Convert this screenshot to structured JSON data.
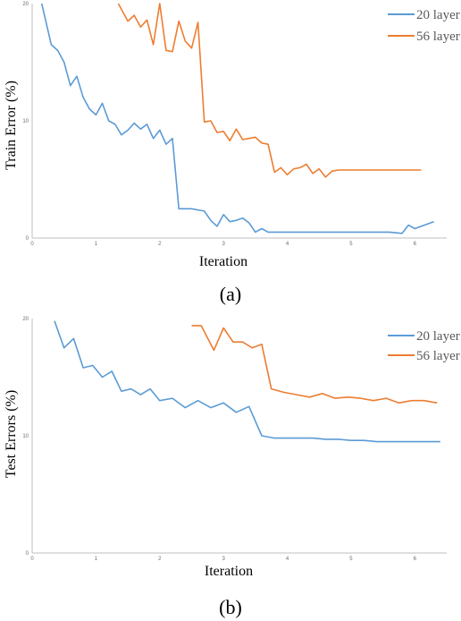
{
  "chart_data": [
    {
      "type": "line",
      "title": "",
      "caption": "(a)",
      "xlabel": "Iteration",
      "ylabel": "Train Error (%)",
      "xlim": [
        0,
        6.5
      ],
      "ylim": [
        0,
        20
      ],
      "x_ticks": [
        "0",
        "1",
        "2",
        "3",
        "4",
        "5",
        "6"
      ],
      "y_ticks": [
        "0",
        "10",
        "20"
      ],
      "legend_position": "top-right",
      "series": [
        {
          "name": "20 layer",
          "color": "#5b9bd5",
          "x": [
            0.15,
            0.3,
            0.4,
            0.5,
            0.6,
            0.7,
            0.8,
            0.9,
            1.0,
            1.1,
            1.2,
            1.3,
            1.4,
            1.5,
            1.6,
            1.7,
            1.8,
            1.9,
            2.0,
            2.1,
            2.2,
            2.3,
            2.4,
            2.5,
            2.6,
            2.7,
            2.8,
            2.9,
            3.0,
            3.1,
            3.2,
            3.3,
            3.4,
            3.5,
            3.6,
            3.7,
            3.8,
            3.9,
            4.0,
            4.1,
            4.2,
            4.3,
            4.4,
            4.5,
            4.6,
            4.7,
            4.8,
            4.9,
            5.0,
            5.2,
            5.4,
            5.6,
            5.8,
            5.9,
            6.0,
            6.1,
            6.3
          ],
          "values": [
            20,
            16.5,
            16.0,
            15.0,
            13.0,
            13.8,
            12.0,
            11.0,
            10.5,
            11.5,
            10.0,
            9.7,
            8.8,
            9.2,
            9.8,
            9.3,
            9.7,
            8.5,
            9.2,
            8.0,
            8.5,
            2.5,
            2.5,
            2.5,
            2.4,
            2.3,
            1.5,
            1.0,
            2.0,
            1.4,
            1.5,
            1.7,
            1.3,
            0.5,
            0.8,
            0.5,
            0.5,
            0.5,
            0.5,
            0.5,
            0.5,
            0.5,
            0.5,
            0.5,
            0.5,
            0.5,
            0.5,
            0.5,
            0.5,
            0.5,
            0.5,
            0.5,
            0.4,
            1.1,
            0.8,
            1.0,
            1.4
          ]
        },
        {
          "name": "56 layer",
          "color": "#ed7d31",
          "x": [
            1.35,
            1.5,
            1.6,
            1.7,
            1.8,
            1.9,
            2.0,
            2.1,
            2.2,
            2.3,
            2.4,
            2.5,
            2.6,
            2.7,
            2.8,
            2.9,
            3.0,
            3.1,
            3.2,
            3.3,
            3.4,
            3.5,
            3.6,
            3.7,
            3.8,
            3.9,
            4.0,
            4.1,
            4.2,
            4.3,
            4.4,
            4.5,
            4.6,
            4.7,
            4.8,
            4.9,
            5.0,
            5.1,
            5.2,
            5.3,
            5.4,
            5.5,
            5.6,
            5.7,
            5.8,
            5.9,
            6.0,
            6.1
          ],
          "values": [
            20,
            18.5,
            19.0,
            18.0,
            18.6,
            16.5,
            20.0,
            16.0,
            15.9,
            18.5,
            16.8,
            16.2,
            18.4,
            9.9,
            10.0,
            9.0,
            9.1,
            8.3,
            9.3,
            8.4,
            8.5,
            8.6,
            8.1,
            8.0,
            5.6,
            6.0,
            5.4,
            5.9,
            6.0,
            6.3,
            5.5,
            5.9,
            5.2,
            5.7,
            5.8,
            5.8,
            5.8,
            5.8,
            5.8,
            5.8,
            5.8,
            5.8,
            5.8,
            5.8,
            5.8,
            5.8,
            5.8,
            5.8
          ]
        }
      ]
    },
    {
      "type": "line",
      "title": "",
      "caption": "(b)",
      "xlabel": "Iteration",
      "ylabel": "Test Errors (%)",
      "xlim": [
        0,
        6.5
      ],
      "ylim": [
        0,
        20
      ],
      "x_ticks": [
        "0",
        "1",
        "2",
        "3",
        "4",
        "5",
        "6"
      ],
      "y_ticks": [
        "0",
        "10",
        "20"
      ],
      "legend_position": "top-right",
      "series": [
        {
          "name": "20 layer",
          "color": "#5b9bd5",
          "x": [
            0.35,
            0.5,
            0.65,
            0.8,
            0.95,
            1.1,
            1.25,
            1.4,
            1.55,
            1.7,
            1.85,
            2.0,
            2.2,
            2.4,
            2.6,
            2.8,
            3.0,
            3.2,
            3.4,
            3.6,
            3.8,
            4.0,
            4.2,
            4.4,
            4.6,
            4.8,
            5.0,
            5.2,
            5.4,
            5.6,
            5.8,
            6.0,
            6.2,
            6.4
          ],
          "values": [
            19.8,
            17.5,
            18.3,
            15.8,
            16.0,
            15.0,
            15.5,
            13.8,
            14.0,
            13.5,
            14.0,
            13.0,
            13.2,
            12.4,
            13.0,
            12.4,
            12.8,
            12.0,
            12.5,
            10.0,
            9.8,
            9.8,
            9.8,
            9.8,
            9.7,
            9.7,
            9.6,
            9.6,
            9.5,
            9.5,
            9.5,
            9.5,
            9.5,
            9.5
          ]
        },
        {
          "name": "56 layer",
          "color": "#ed7d31",
          "x": [
            2.5,
            2.65,
            2.85,
            3.0,
            3.15,
            3.3,
            3.45,
            3.6,
            3.75,
            3.95,
            4.15,
            4.35,
            4.55,
            4.75,
            4.95,
            5.15,
            5.35,
            5.55,
            5.75,
            5.95,
            6.15,
            6.35
          ],
          "values": [
            19.4,
            19.4,
            17.3,
            19.2,
            18.0,
            18.0,
            17.5,
            17.8,
            14.0,
            13.7,
            13.5,
            13.3,
            13.6,
            13.2,
            13.3,
            13.2,
            13.0,
            13.2,
            12.8,
            13.0,
            13.0,
            12.8
          ]
        }
      ]
    }
  ]
}
